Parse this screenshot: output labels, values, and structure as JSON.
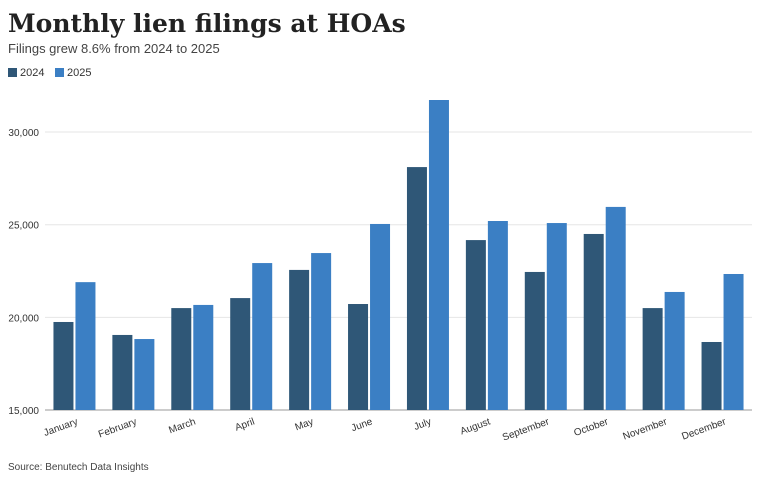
{
  "chart_data": {
    "type": "bar",
    "title": "Monthly lien filings at HOAs",
    "subtitle": "Filings grew 8.6% from 2024 to 2025",
    "source": "Source: Benutech Data Insights",
    "categories": [
      "January",
      "February",
      "March",
      "April",
      "May",
      "June",
      "July",
      "August",
      "September",
      "October",
      "November",
      "December"
    ],
    "series": [
      {
        "name": "2024",
        "color": "#2f5777",
        "values": [
          19750,
          19050,
          20500,
          21040,
          22560,
          20720,
          28110,
          24170,
          22450,
          24500,
          20500,
          18670
        ]
      },
      {
        "name": "2025",
        "color": "#3b7fc4",
        "values": [
          21900,
          18830,
          20670,
          22930,
          23470,
          25040,
          31730,
          25200,
          25090,
          25960,
          21370,
          22340
        ]
      }
    ],
    "ylim": [
      15000,
      32000
    ],
    "yticks": [
      {
        "value": 15000,
        "label": "15,000"
      },
      {
        "value": 20000,
        "label": "20,000"
      },
      {
        "value": 25000,
        "label": "25,000"
      },
      {
        "value": 30000,
        "label": "30,000"
      }
    ],
    "grid": true,
    "legend": "top-left"
  }
}
